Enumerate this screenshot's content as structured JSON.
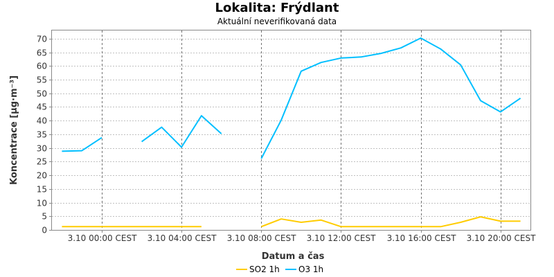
{
  "title": "Lokalita: Frýdlant",
  "subtitle": "Aktuální neverifikovaná data",
  "chart_data": {
    "type": "line",
    "xlabel": "Datum a čas",
    "ylabel": "Koncentrace [µg·m⁻³]",
    "ylim": [
      0,
      73
    ],
    "yticks": [
      0,
      5,
      10,
      15,
      20,
      25,
      30,
      35,
      40,
      45,
      50,
      55,
      60,
      65,
      70
    ],
    "x_tick_labels": [
      "3.10 00:00 CEST",
      "3.10 04:00 CEST",
      "3.10 08:00 CEST",
      "3.10 12:00 CEST",
      "3.10 16:00 CEST",
      "3.10 20:00 CEST"
    ],
    "x": [
      "2.10 22:00",
      "2.10 23:00",
      "3.10 00:00",
      "3.10 01:00",
      "3.10 02:00",
      "3.10 03:00",
      "3.10 04:00",
      "3.10 05:00",
      "3.10 06:00",
      "3.10 07:00",
      "3.10 08:00",
      "3.10 09:00",
      "3.10 10:00",
      "3.10 11:00",
      "3.10 12:00",
      "3.10 13:00",
      "3.10 14:00",
      "3.10 15:00",
      "3.10 16:00",
      "3.10 17:00",
      "3.10 18:00",
      "3.10 19:00",
      "3.10 20:00",
      "3.10 21:00"
    ],
    "grid": true,
    "legend_position": "bottom-center",
    "series": [
      {
        "name": "SO2 1h",
        "color": "#ffcc00",
        "values": [
          1.2,
          1.2,
          1.2,
          1.2,
          1.2,
          1.2,
          1.2,
          1.2,
          null,
          null,
          1.2,
          4.0,
          2.8,
          3.6,
          1.2,
          1.2,
          1.2,
          1.2,
          1.2,
          1.2,
          2.8,
          4.8,
          3.2,
          3.2
        ]
      },
      {
        "name": "O3 1h",
        "color": "#00bfff",
        "values": [
          28.8,
          29.0,
          33.8,
          null,
          32.3,
          37.6,
          30.3,
          41.8,
          35.2,
          null,
          26.1,
          40.2,
          58.1,
          61.3,
          62.9,
          63.3,
          64.6,
          66.6,
          70.2,
          66.2,
          60.4,
          47.3,
          43.2,
          48.2
        ]
      }
    ]
  }
}
